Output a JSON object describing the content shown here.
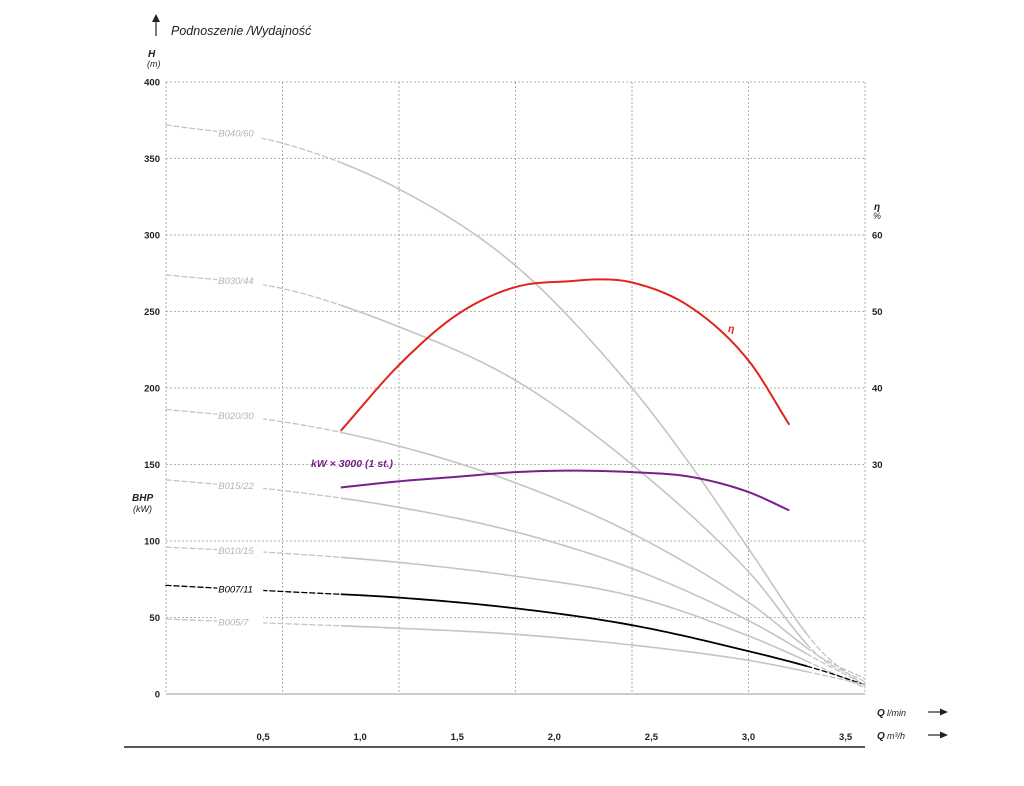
{
  "chart_data": {
    "type": "line",
    "title": "Podnoszenie /Wydajność",
    "y_left": {
      "label": "H",
      "unit": "(m)",
      "ylim": [
        0,
        400
      ],
      "ticks": [
        "0",
        "50",
        "100",
        "150",
        "200",
        "250",
        "300",
        "350",
        "400"
      ]
    },
    "y_left_power": {
      "label": "BHP",
      "unit": "(kW)"
    },
    "y_right": {
      "label": "η",
      "unit": "%",
      "ticks": [
        {
          "h": 250,
          "label": "50"
        },
        {
          "h": 300,
          "label": "60"
        },
        {
          "h": 200,
          "label": "40"
        },
        {
          "h": 150,
          "label": "30"
        }
      ]
    },
    "x_lpm": {
      "label": "Q",
      "unit": "l/min",
      "xlim": [
        0,
        60
      ],
      "grid": [
        0,
        10,
        20,
        30,
        40,
        50,
        60
      ]
    },
    "x_m3h": {
      "label": "Q",
      "unit": "m³/h",
      "ticks": [
        "0,5",
        "1,0",
        "1,5",
        "2,0",
        "2,5",
        "3,0",
        "3,5"
      ],
      "values": [
        0.5,
        1.0,
        1.5,
        2.0,
        2.5,
        3.0,
        3.5
      ],
      "scale": [
        0,
        3.6
      ]
    },
    "grid": true,
    "series": [
      {
        "name": "B040/60",
        "color": "#c4c4c4",
        "x": [
          0,
          10,
          20,
          30,
          40,
          45,
          50,
          56,
          60
        ],
        "y": [
          372,
          360,
          330,
          280,
          200,
          150,
          95,
          30,
          5
        ]
      },
      {
        "name": "B030/44",
        "color": "#c4c4c4",
        "x": [
          0,
          10,
          20,
          30,
          40,
          50,
          56,
          60
        ],
        "y": [
          274,
          265,
          240,
          205,
          150,
          80,
          25,
          8
        ]
      },
      {
        "name": "B020/30",
        "color": "#c4c4c4",
        "x": [
          0,
          10,
          20,
          30,
          40,
          50,
          56,
          60
        ],
        "y": [
          186,
          178,
          162,
          138,
          105,
          60,
          25,
          10
        ]
      },
      {
        "name": "B015/22",
        "color": "#c4c4c4",
        "x": [
          0,
          10,
          20,
          30,
          40,
          50,
          56,
          60
        ],
        "y": [
          140,
          133,
          122,
          106,
          82,
          48,
          22,
          6
        ]
      },
      {
        "name": "B010/15",
        "color": "#c4c4c4",
        "x": [
          0,
          10,
          20,
          30,
          40,
          50,
          56,
          60
        ],
        "y": [
          96,
          92,
          86,
          77,
          64,
          38,
          18,
          4
        ]
      },
      {
        "name": "B007/11",
        "color": "#000000",
        "x": [
          0,
          10,
          20,
          30,
          40,
          50,
          56,
          60
        ],
        "y": [
          71,
          67,
          63,
          56,
          45,
          28,
          16,
          6
        ]
      },
      {
        "name": "B005/7",
        "color": "#c4c4c4",
        "x": [
          0,
          10,
          20,
          30,
          40,
          50,
          56,
          60
        ],
        "y": [
          49,
          46,
          43,
          39,
          32,
          22,
          13,
          6
        ]
      },
      {
        "name": "η",
        "color": "#e2241b",
        "x": [
          15,
          20,
          25,
          30,
          35,
          37,
          40,
          45,
          50,
          53.5
        ],
        "y": [
          172,
          215,
          248,
          266,
          270,
          271,
          269,
          253,
          218,
          176
        ]
      },
      {
        "name": "kW × 3000 (1 st.)",
        "color": "#7a1e8c",
        "x": [
          15,
          20,
          25,
          30,
          35,
          40,
          45,
          50,
          53.5
        ],
        "y": [
          135,
          139,
          142,
          145,
          146,
          145,
          142,
          132,
          120
        ]
      }
    ]
  }
}
